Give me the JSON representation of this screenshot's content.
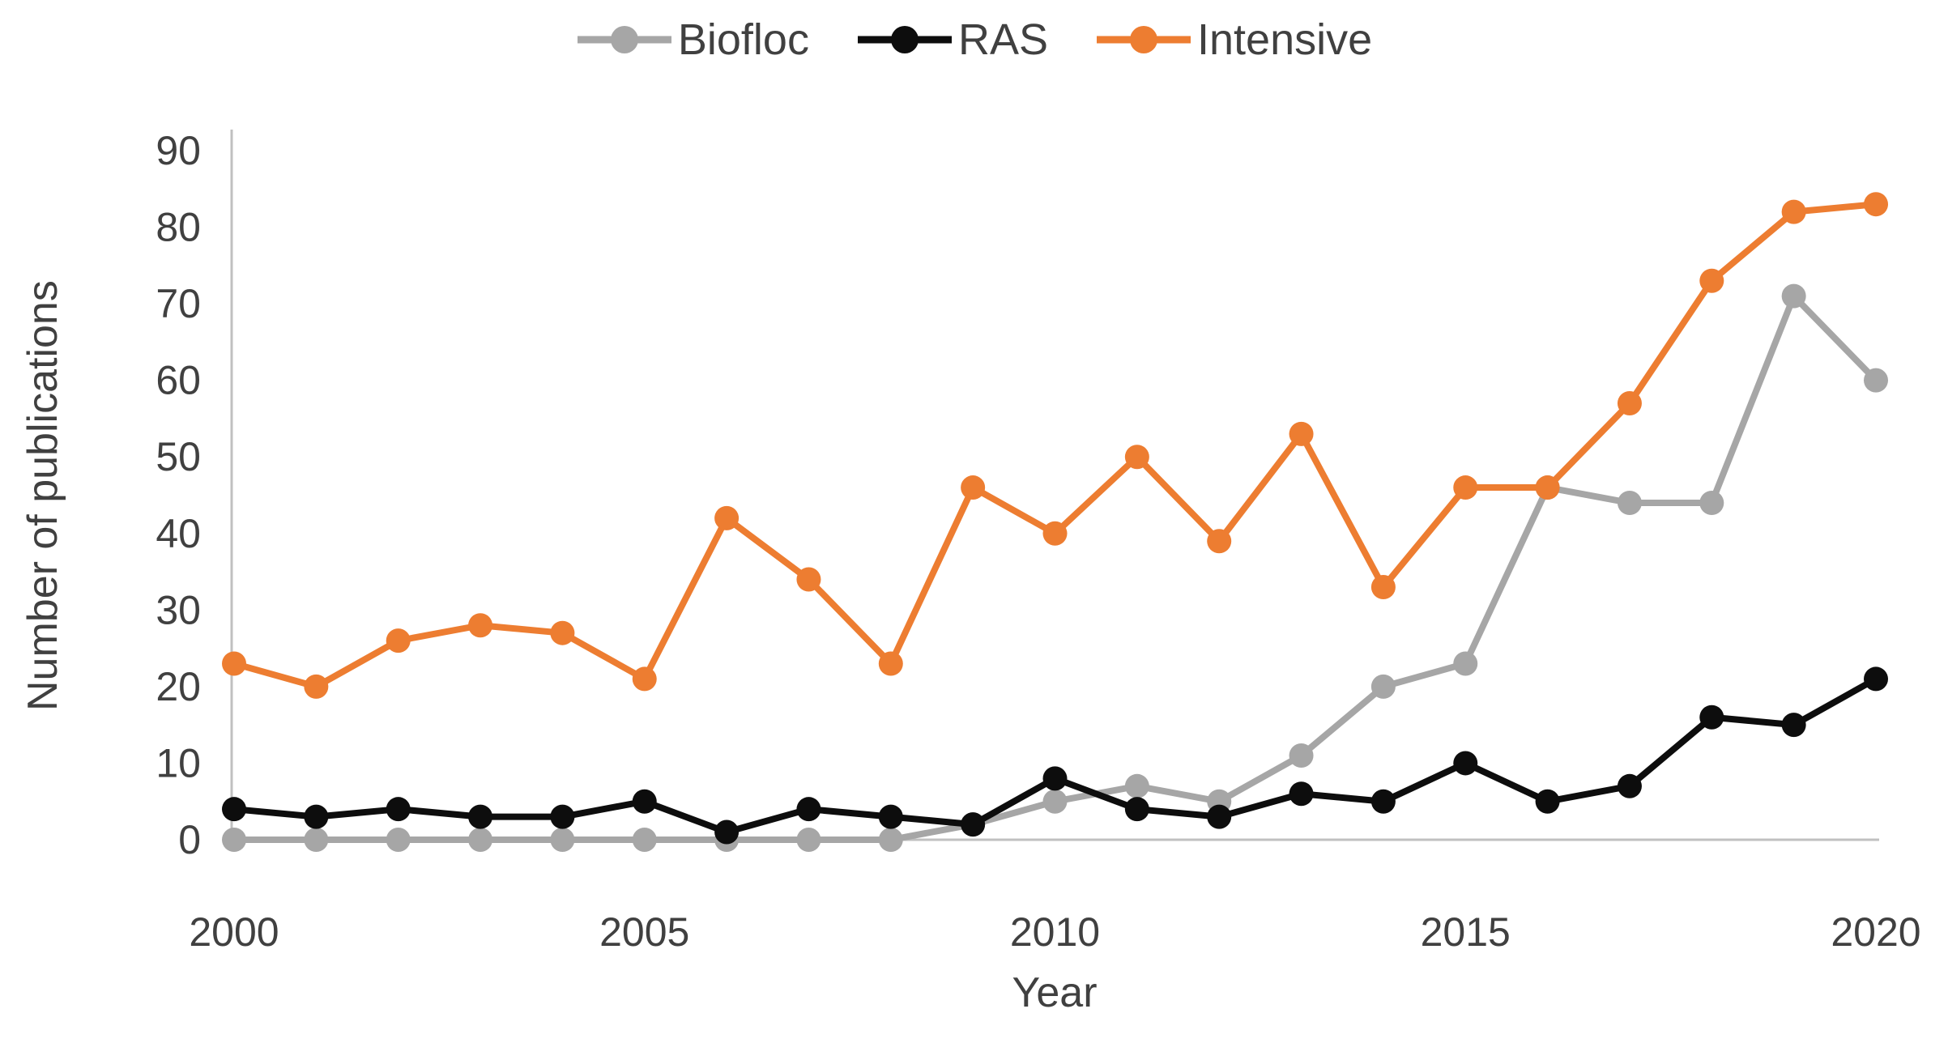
{
  "chart_data": {
    "type": "line",
    "title": "",
    "xlabel": "Year",
    "ylabel": "Number of publications",
    "x": [
      2000,
      2001,
      2002,
      2003,
      2004,
      2005,
      2006,
      2007,
      2008,
      2009,
      2010,
      2011,
      2012,
      2013,
      2014,
      2015,
      2016,
      2017,
      2018,
      2019,
      2020
    ],
    "x_ticks": [
      2000,
      2005,
      2010,
      2015,
      2020
    ],
    "y_ticks": [
      0,
      10,
      20,
      30,
      40,
      50,
      60,
      70,
      80,
      90
    ],
    "ylim": [
      0,
      90
    ],
    "xlim": [
      2000,
      2020
    ],
    "grid": "off",
    "legend_position": "top-center",
    "marker": "circle",
    "series": [
      {
        "name": "Biofloc",
        "color": "#A6A6A6",
        "values": [
          0,
          0,
          0,
          0,
          0,
          0,
          0,
          0,
          0,
          2,
          5,
          7,
          5,
          11,
          20,
          23,
          46,
          44,
          44,
          71,
          60
        ]
      },
      {
        "name": "RAS",
        "color": "#0D0D0D",
        "values": [
          4,
          3,
          4,
          3,
          3,
          5,
          1,
          4,
          3,
          2,
          8,
          4,
          3,
          6,
          5,
          10,
          5,
          7,
          16,
          15,
          21
        ]
      },
      {
        "name": "Intensive",
        "color": "#ED7D31",
        "values": [
          23,
          20,
          26,
          28,
          27,
          21,
          42,
          34,
          23,
          46,
          40,
          50,
          39,
          53,
          33,
          46,
          46,
          57,
          73,
          82,
          83
        ]
      }
    ]
  },
  "style": {
    "axis_color": "#C0C0C0",
    "text_color": "#404040",
    "tick_font_size": 50,
    "line_width": 8,
    "marker_radius": 15
  }
}
